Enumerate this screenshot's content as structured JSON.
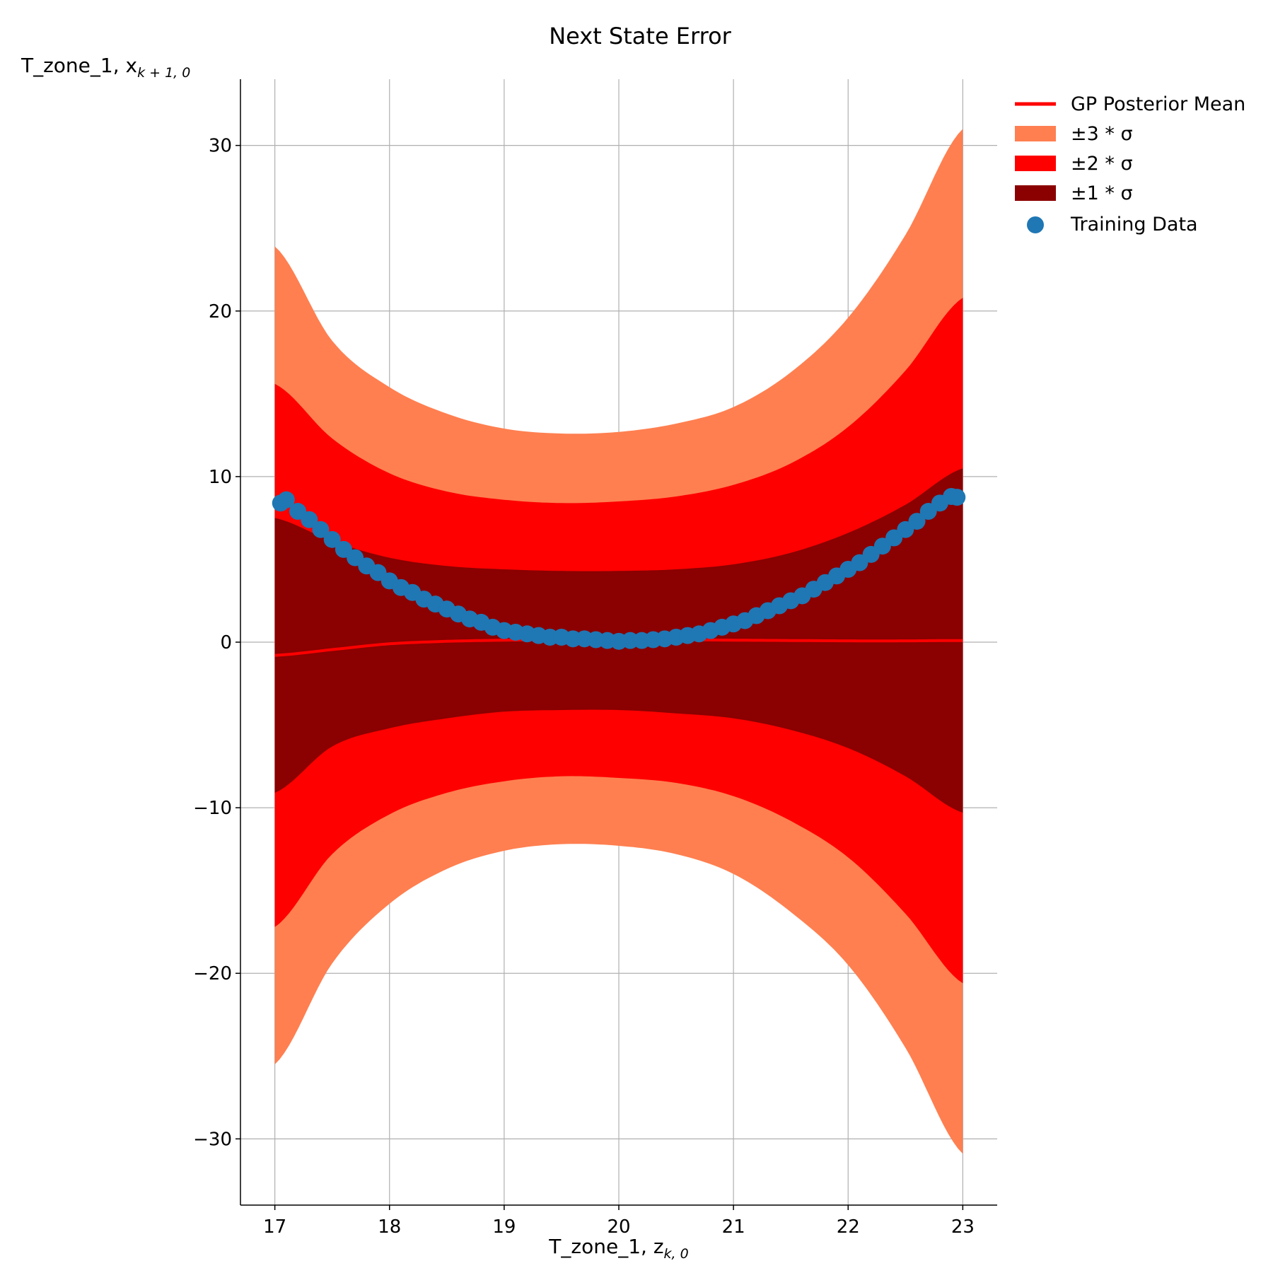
{
  "chart_data": {
    "type": "line",
    "title": "Next State Error",
    "xlabel": "T_zone_1, z",
    "xlabel_subscript": "k, 0",
    "ylabel": "T_zone_1, x",
    "ylabel_subscript": "k + 1, 0",
    "xlim": [
      16.7,
      23.3
    ],
    "ylim": [
      -34,
      34
    ],
    "x_ticks": [
      17,
      18,
      19,
      20,
      21,
      22,
      23
    ],
    "y_ticks": [
      30,
      20,
      10,
      0,
      -10,
      -20,
      -30
    ],
    "y_tick_labels": [
      "30",
      "20",
      "10",
      "0",
      "−10",
      "−20",
      "−30"
    ],
    "grid": true,
    "legend_position": "outside upper-right",
    "legend": {
      "mean": "GP Posterior Mean",
      "band3": "±3 * σ",
      "band2": "±2 * σ",
      "band1": "±1 * σ",
      "training": "Training Data"
    },
    "colors": {
      "band3": "#ff7f50",
      "band2": "#ff0000",
      "band1": "#8b0000",
      "mean": "#ff0000",
      "training": "#1f77b4"
    },
    "x_grid": [
      17,
      17.5,
      18,
      18.5,
      19,
      19.5,
      20,
      20.5,
      21,
      21.5,
      22,
      22.5,
      23
    ],
    "posterior_mean": [
      -0.8,
      -0.45,
      -0.1,
      0.05,
      0.12,
      0.16,
      0.16,
      0.15,
      0.12,
      0.1,
      0.08,
      0.08,
      0.1
    ],
    "band3_upper": [
      23.9,
      18.2,
      15.4,
      13.8,
      12.9,
      12.6,
      12.7,
      13.2,
      14.2,
      16.3,
      19.6,
      24.6,
      31.0
    ],
    "band3_lower": [
      -25.5,
      -19.4,
      -15.8,
      -13.7,
      -12.6,
      -12.2,
      -12.3,
      -12.8,
      -14.0,
      -16.3,
      -19.5,
      -24.5,
      -30.9
    ],
    "band2_upper": [
      15.6,
      12.3,
      10.2,
      9.1,
      8.6,
      8.4,
      8.5,
      8.8,
      9.5,
      10.8,
      13.0,
      16.4,
      20.8
    ],
    "band2_lower": [
      -17.2,
      -12.8,
      -10.4,
      -9.1,
      -8.4,
      -8.1,
      -8.2,
      -8.5,
      -9.3,
      -10.8,
      -13.0,
      -16.4,
      -20.6
    ],
    "band1_upper": [
      7.5,
      6.1,
      5.1,
      4.6,
      4.4,
      4.3,
      4.3,
      4.4,
      4.7,
      5.4,
      6.6,
      8.3,
      10.5
    ],
    "band1_lower": [
      -9.1,
      -6.3,
      -5.2,
      -4.6,
      -4.2,
      -4.1,
      -4.1,
      -4.3,
      -4.6,
      -5.3,
      -6.4,
      -8.1,
      -10.3
    ],
    "training_x": [
      17.05,
      17.1,
      17.2,
      17.3,
      17.4,
      17.5,
      17.6,
      17.7,
      17.8,
      17.9,
      18.0,
      18.1,
      18.2,
      18.3,
      18.4,
      18.5,
      18.6,
      18.7,
      18.8,
      18.9,
      19.0,
      19.1,
      19.2,
      19.3,
      19.4,
      19.5,
      19.6,
      19.7,
      19.8,
      19.9,
      20.0,
      20.1,
      20.2,
      20.3,
      20.4,
      20.5,
      20.6,
      20.7,
      20.8,
      20.9,
      21.0,
      21.1,
      21.2,
      21.3,
      21.4,
      21.5,
      21.6,
      21.7,
      21.8,
      21.9,
      22.0,
      22.1,
      22.2,
      22.3,
      22.4,
      22.5,
      22.6,
      22.7,
      22.8,
      22.9,
      22.95
    ],
    "training_y": [
      8.4,
      8.6,
      7.9,
      7.4,
      6.8,
      6.2,
      5.6,
      5.1,
      4.6,
      4.2,
      3.7,
      3.3,
      3.0,
      2.6,
      2.3,
      2.0,
      1.7,
      1.4,
      1.2,
      0.9,
      0.7,
      0.6,
      0.5,
      0.4,
      0.3,
      0.3,
      0.2,
      0.2,
      0.15,
      0.1,
      0.05,
      0.1,
      0.1,
      0.15,
      0.2,
      0.3,
      0.4,
      0.5,
      0.7,
      0.9,
      1.1,
      1.3,
      1.6,
      1.9,
      2.2,
      2.5,
      2.8,
      3.2,
      3.6,
      4.0,
      4.4,
      4.8,
      5.3,
      5.8,
      6.3,
      6.8,
      7.3,
      7.9,
      8.4,
      8.8,
      8.75
    ]
  }
}
